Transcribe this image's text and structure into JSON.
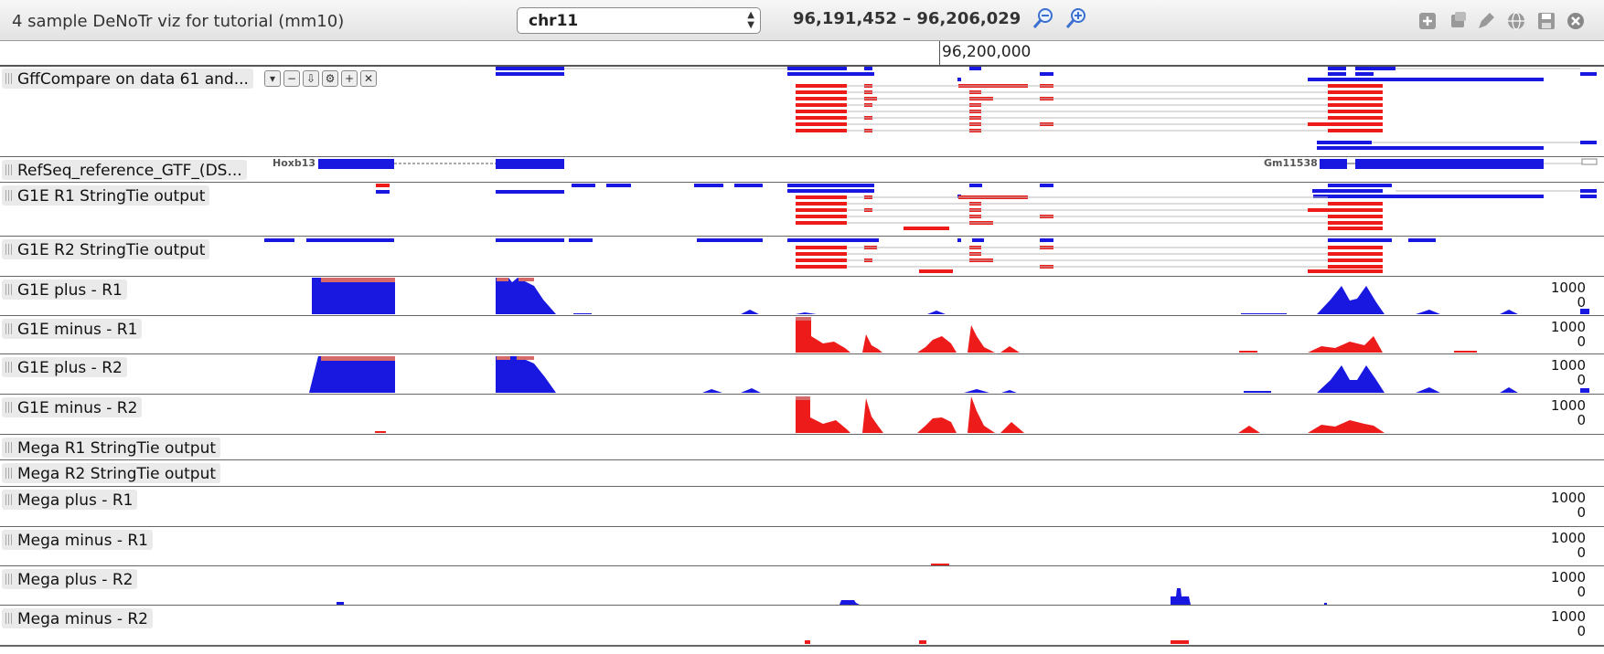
{
  "header": {
    "title": "4 sample DeNoTr viz for tutorial (mm10)",
    "chromosome": "chr11",
    "location": "96,191,452 – 96,206,029",
    "icons": [
      "zoom-out-icon",
      "zoom-in-icon",
      "add-track-icon",
      "share-icon",
      "edit-icon",
      "globe-icon",
      "save-icon",
      "close-icon"
    ]
  },
  "ruler": {
    "position_label": "96,200,000"
  },
  "colors": {
    "plus": "#1818e0",
    "minus": "#ee1b1b",
    "clip": "#d66a6a"
  },
  "tracks": [
    {
      "label": "GffCompare on data 61 and..."
    },
    {
      "label": "RefSeq_reference_GTF_(DS...",
      "genes": [
        "Hoxb13",
        "Gm11538"
      ]
    },
    {
      "label": "G1E R1 StringTie output"
    },
    {
      "label": "G1E R2 StringTie output"
    },
    {
      "label": "G1E plus - R1",
      "scale_max": "1000",
      "scale_min": "0"
    },
    {
      "label": "G1E minus - R1",
      "scale_max": "1000",
      "scale_min": "0"
    },
    {
      "label": "G1E plus - R2",
      "scale_max": "1000",
      "scale_min": "0"
    },
    {
      "label": "G1E minus - R2",
      "scale_max": "1000",
      "scale_min": "0"
    },
    {
      "label": "Mega R1 StringTie output"
    },
    {
      "label": "Mega R2 StringTie output"
    },
    {
      "label": "Mega plus - R1",
      "scale_max": "1000",
      "scale_min": "0"
    },
    {
      "label": "Mega minus - R1",
      "scale_max": "1000",
      "scale_min": "0"
    },
    {
      "label": "Mega plus - R2",
      "scale_max": "1000",
      "scale_min": "0"
    },
    {
      "label": "Mega minus - R2",
      "scale_max": "1000",
      "scale_min": "0"
    }
  ]
}
